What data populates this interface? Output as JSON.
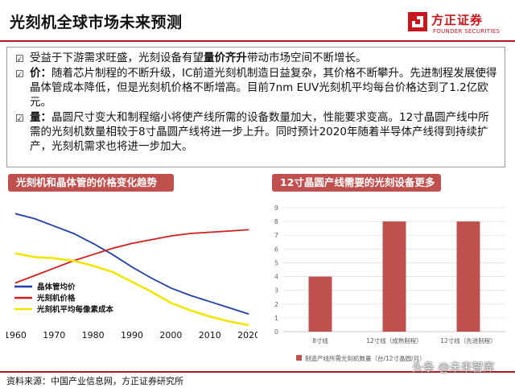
{
  "header": {
    "title": "光刻机全球市场未来预测",
    "logo_cn": "方正证券",
    "logo_en": "FOUNDER SECURITIES"
  },
  "bullets": [
    {
      "icon": "checkbox-icon",
      "bold": "",
      "pre": "受益于下游需求旺盛，光刻设备有望",
      "strong": "量价齐升",
      "post": "带动市场空间不断增长。"
    },
    {
      "icon": "checkbox-icon",
      "bold": "价：",
      "pre": "随着芯片制程的不断升级，IC前道光刻机制造日益复杂，其价格不断攀升。先进制程发展使得晶体管成本降低，但是光刻机价格不断增高。目前7nm EUV光刻机平均每台价格达到了1.2亿欧元。",
      "strong": "",
      "post": ""
    },
    {
      "icon": "checkbox-icon",
      "bold": "量：",
      "pre": "晶圆尺寸变大和制程缩小将使产线所需的设备数量加大，性能要求变高。12寸晶圆产线中所需的光刻机数量相较于8寸晶圆产线将进一步上升。同时预计2020年随着半导体产线得到持续扩产，光刻机需求也将进一步加大。",
      "strong": "",
      "post": ""
    }
  ],
  "left_panel": {
    "tag": "光刻机和晶体管的价格变化趋势"
  },
  "right_panel": {
    "tag": "12寸晶圆产线需要的光刻设备更多"
  },
  "chart_data": [
    {
      "type": "line",
      "title": "光刻机和晶体管的价格变化趋势",
      "x": [
        1960,
        1965,
        1970,
        1975,
        1980,
        1985,
        1990,
        1995,
        2000,
        2005,
        2010,
        2015,
        2020
      ],
      "xticks": [
        "1960",
        "1970",
        "1980",
        "1990",
        "2000",
        "2010",
        "2020"
      ],
      "xlim": [
        1959,
        2021
      ],
      "ylim": [
        0,
        100
      ],
      "series": [
        {
          "name": "晶体管均价",
          "color": "#1f3fa8",
          "values": [
            90,
            86,
            80,
            74,
            66,
            57,
            47,
            38,
            30,
            24,
            19,
            14,
            9
          ]
        },
        {
          "name": "光刻机价格",
          "color": "#d01f1f",
          "values": [
            34,
            40,
            46,
            52,
            57,
            62,
            66,
            69,
            72,
            74,
            75,
            76,
            77
          ]
        },
        {
          "name": "光刻机平均每像素成本",
          "color": "#f2e600",
          "values": [
            58,
            55,
            54,
            52,
            48,
            43,
            35,
            27,
            18,
            12,
            7,
            3,
            0
          ]
        }
      ],
      "legend": "bottom-left",
      "grid": false
    },
    {
      "type": "bar",
      "title": "12寸晶圆产线需要的光刻设备更多",
      "categories": [
        "8寸线",
        "12寸线（成熟制程）",
        "12寸线（先进制程）"
      ],
      "values": [
        4,
        8,
        8
      ],
      "yticks": [
        "0",
        "1",
        "2",
        "3",
        "4",
        "5",
        "6",
        "7",
        "8",
        "9"
      ],
      "ylim": [
        0,
        9
      ],
      "color": "#c0504d",
      "series_name": "制造产线所需光刻机数量（台/12寸晶圆/月）",
      "legend": "bottom",
      "grid": true
    }
  ],
  "footer": {
    "source": "资料来源：中国产业信息网，方正证券研究所",
    "watermark": "头条 @未来智库"
  }
}
